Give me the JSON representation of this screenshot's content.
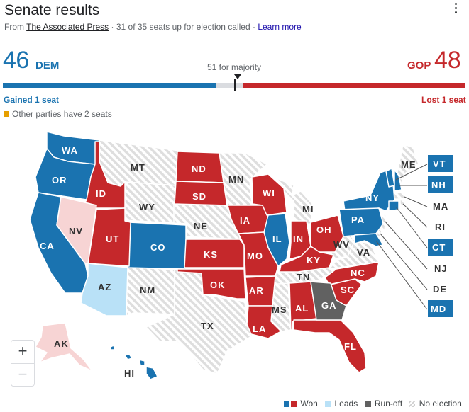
{
  "header": {
    "title": "Senate results",
    "source_prefix": "From ",
    "source_name": "The Associated Press",
    "source_suffix": " · 31 of 35 seats up for election called · ",
    "learn_more": "Learn more"
  },
  "tally": {
    "dem_count": "46",
    "dem_label": "DEM",
    "gop_count": "48",
    "gop_label": "GOP",
    "majority_label": "51 for majority",
    "dem_change": "Gained 1 seat",
    "gop_change": "Lost 1 seat",
    "other_parties": "Other parties have 2 seats",
    "bar": {
      "dem_seats": 46,
      "other_seats": 6,
      "gop_seats": 48,
      "total": 100
    }
  },
  "colors": {
    "won_dem": "#1a73b0",
    "won_gop": "#c5282b",
    "leads_dem": "#b9e1f7",
    "leads_gop": "#f7d4d4",
    "runoff": "#616161",
    "no_election": "#e8e8e8",
    "other": "#e69f00"
  },
  "states": {
    "WA": "WA",
    "OR": "OR",
    "CA": "CA",
    "NV": "NV",
    "ID": "ID",
    "MT": "MT",
    "WY": "WY",
    "UT": "UT",
    "AZ": "AZ",
    "CO": "CO",
    "NM": "NM",
    "ND": "ND",
    "SD": "SD",
    "NE": "NE",
    "KS": "KS",
    "OK": "OK",
    "TX": "TX",
    "MN": "MN",
    "IA": "IA",
    "MO": "MO",
    "AR": "AR",
    "LA": "LA",
    "WI": "WI",
    "IL": "IL",
    "MI": "MI",
    "IN": "IN",
    "OH": "OH",
    "KY": "KY",
    "TN": "TN",
    "MS": "MS",
    "AL": "AL",
    "GA": "GA",
    "FL": "FL",
    "SC": "SC",
    "NC": "NC",
    "VA": "VA",
    "WV": "WV",
    "PA": "PA",
    "NY": "NY",
    "ME": "ME",
    "VT": "VT",
    "NH": "NH",
    "MA": "MA",
    "RI": "RI",
    "CT": "CT",
    "NJ": "NJ",
    "DE": "DE",
    "MD": "MD",
    "AK": "AK",
    "HI": "HI"
  },
  "legend": {
    "won": "Won",
    "leads": "Leads",
    "runoff": "Run-off",
    "no_election": "No election"
  },
  "zoom": {
    "in": "+",
    "out": "−"
  }
}
